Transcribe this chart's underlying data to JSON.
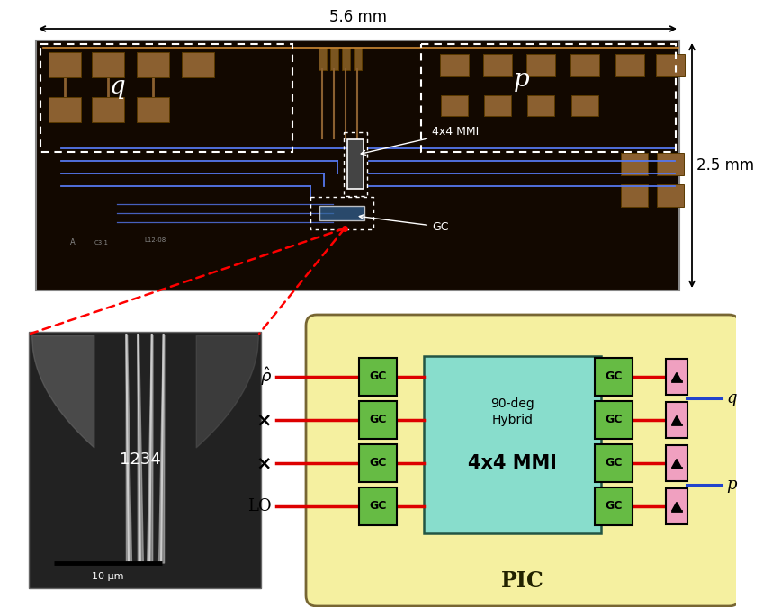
{
  "pic_bg_color": "#f5f0a0",
  "pic_border_color": "#888855",
  "gc_color": "#66bb44",
  "mmi_color": "#88ddcc",
  "diode_color": "#f0a0c0",
  "red_line_color": "#dd0000",
  "blue_line_color": "#2244cc",
  "chip_bg_color": "#120800",
  "chip_border_color": "#888888",
  "wg_color": "#5577ee",
  "pad_color": "#8B6030",
  "pad_edge_color": "#5a3a00",
  "sem_bg_color": "#2a2a2a",
  "dim_arrow_color": "#000000",
  "labels": {
    "q_chip": "q",
    "p_chip": "p",
    "rho_label": "$\\hat{\\rho}$",
    "lo_label": "LO",
    "cross": "×",
    "gc_text": "GC",
    "mmi_line1": "90-deg",
    "mmi_line2": "Hybrid",
    "mmi_large": "4x4 MMI",
    "pic_text": "PIC",
    "dim_56": "5.6 mm",
    "dim_25": "2.5 mm",
    "ann_mmi": "4x4 MMI",
    "ann_gc": "GC",
    "sem_numbers": "1234",
    "scalebar": "10 μm"
  }
}
